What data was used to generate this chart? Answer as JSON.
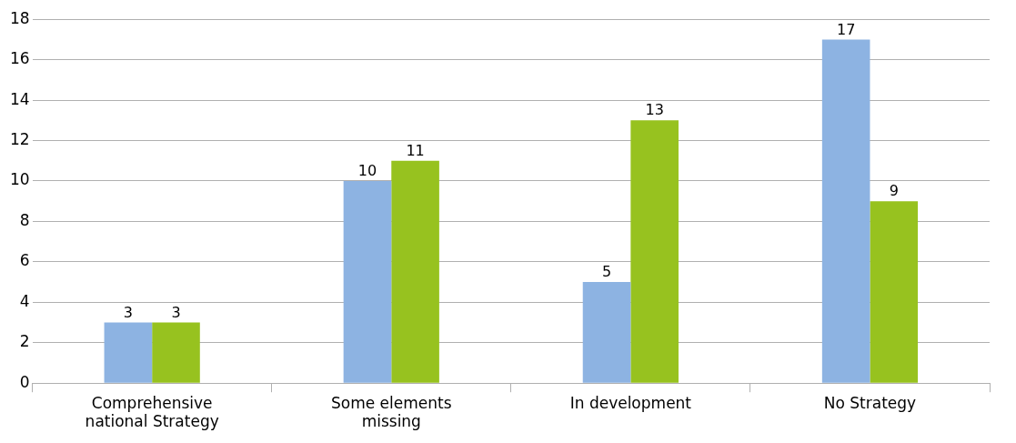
{
  "chart_data": {
    "type": "bar",
    "categories": [
      "Comprehensive national Strategy",
      "Some elements missing",
      "In development",
      "No Strategy"
    ],
    "series": [
      {
        "color": "#8db3e2",
        "values": [
          3,
          10,
          5,
          17
        ]
      },
      {
        "color": "#97c21f",
        "values": [
          3,
          11,
          13,
          9
        ]
      }
    ],
    "ylim": [
      0,
      18
    ],
    "yticks": [
      0,
      2,
      4,
      6,
      8,
      10,
      12,
      14,
      16,
      18
    ],
    "grid": "y",
    "data_labels": true,
    "legend": false
  }
}
